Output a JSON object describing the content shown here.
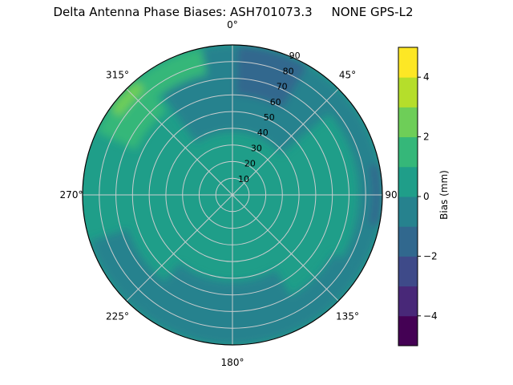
{
  "title": "Delta Antenna Phase Biases: ASH701073.3     NONE GPS-L2",
  "chart_data": {
    "type": "heatmap",
    "projection": "polar",
    "title": "Delta Antenna Phase Biases: ASH701073.3     NONE GPS-L2",
    "antenna": "ASH701073.3",
    "radome": "NONE",
    "signal": "GPS-L2",
    "theta_zero": "top",
    "theta_direction": "clockwise",
    "grid": true,
    "angle_ticks": [
      {
        "angle": 0,
        "label": "0°"
      },
      {
        "angle": 45,
        "label": "45°"
      },
      {
        "angle": 90,
        "label": "90"
      },
      {
        "angle": 135,
        "label": "135°"
      },
      {
        "angle": 180,
        "label": "180°"
      },
      {
        "angle": 225,
        "label": "225°"
      },
      {
        "angle": 270,
        "label": "270°"
      },
      {
        "angle": 315,
        "label": "315°"
      }
    ],
    "radial_ticks": [
      10,
      20,
      30,
      40,
      50,
      60,
      70,
      80,
      90
    ],
    "radial_max": 90,
    "radial_label_angle": 22.5,
    "colorbar": {
      "label": "Bias (mm)",
      "min": -5,
      "max": 5,
      "ticks": [
        -4,
        -2,
        0,
        2,
        4
      ],
      "colormap": "viridis",
      "levels": [
        {
          "from": -5,
          "to": -4,
          "color": "#440154"
        },
        {
          "from": -4,
          "to": -3,
          "color": "#482878"
        },
        {
          "from": -3,
          "to": -2,
          "color": "#3e4a89"
        },
        {
          "from": -2,
          "to": -1,
          "color": "#31688e"
        },
        {
          "from": -1,
          "to": 0,
          "color": "#26828e"
        },
        {
          "from": 0,
          "to": 1,
          "color": "#1f9e89"
        },
        {
          "from": 1,
          "to": 2,
          "color": "#35b779"
        },
        {
          "from": 2,
          "to": 3,
          "color": "#6ece58"
        },
        {
          "from": 3,
          "to": 4,
          "color": "#b5de2b"
        },
        {
          "from": 4,
          "to": 5,
          "color": "#fde725"
        }
      ]
    },
    "base_bias": 0.5,
    "base_color": "#1f9e89",
    "regions": [
      {
        "name": "north-dark",
        "theta_start": -35,
        "theta_end": 50,
        "r_inner": 38,
        "r_outer": 90,
        "bias": -0.5,
        "color": "#26828e"
      },
      {
        "name": "north-darker",
        "theta_start": 2,
        "theta_end": 30,
        "r_inner": 60,
        "r_outer": 90,
        "bias": -1.5,
        "color": "#31688e"
      },
      {
        "name": "east-edge-dark",
        "theta_start": 48,
        "theta_end": 120,
        "r_inner": 76,
        "r_outer": 90,
        "bias": -0.5,
        "color": "#26828e"
      },
      {
        "name": "east-edge-darker",
        "theta_start": 78,
        "theta_end": 102,
        "r_inner": 84,
        "r_outer": 90,
        "bias": -1.5,
        "color": "#31688e"
      },
      {
        "name": "southeast-edge-dark",
        "theta_start": 120,
        "theta_end": 152,
        "r_inner": 70,
        "r_outer": 90,
        "bias": -0.5,
        "color": "#26828e"
      },
      {
        "name": "south-dark",
        "theta_start": 150,
        "theta_end": 218,
        "r_inner": 52,
        "r_outer": 90,
        "bias": -0.5,
        "color": "#26828e"
      },
      {
        "name": "southwest-edge-dark",
        "theta_start": 218,
        "theta_end": 252,
        "r_inner": 66,
        "r_outer": 90,
        "bias": -0.5,
        "color": "#26828e"
      },
      {
        "name": "northwest-green",
        "theta_start": 295,
        "theta_end": 322,
        "r_inner": 64,
        "r_outer": 90,
        "bias": 1.5,
        "color": "#35b779"
      },
      {
        "name": "northwest-green-2",
        "theta_start": 322,
        "theta_end": 348,
        "r_inner": 74,
        "r_outer": 90,
        "bias": 1.5,
        "color": "#35b779"
      },
      {
        "name": "northwest-bright",
        "theta_start": 305,
        "theta_end": 320,
        "r_inner": 82,
        "r_outer": 90,
        "bias": 2.5,
        "color": "#6ece58"
      }
    ]
  }
}
